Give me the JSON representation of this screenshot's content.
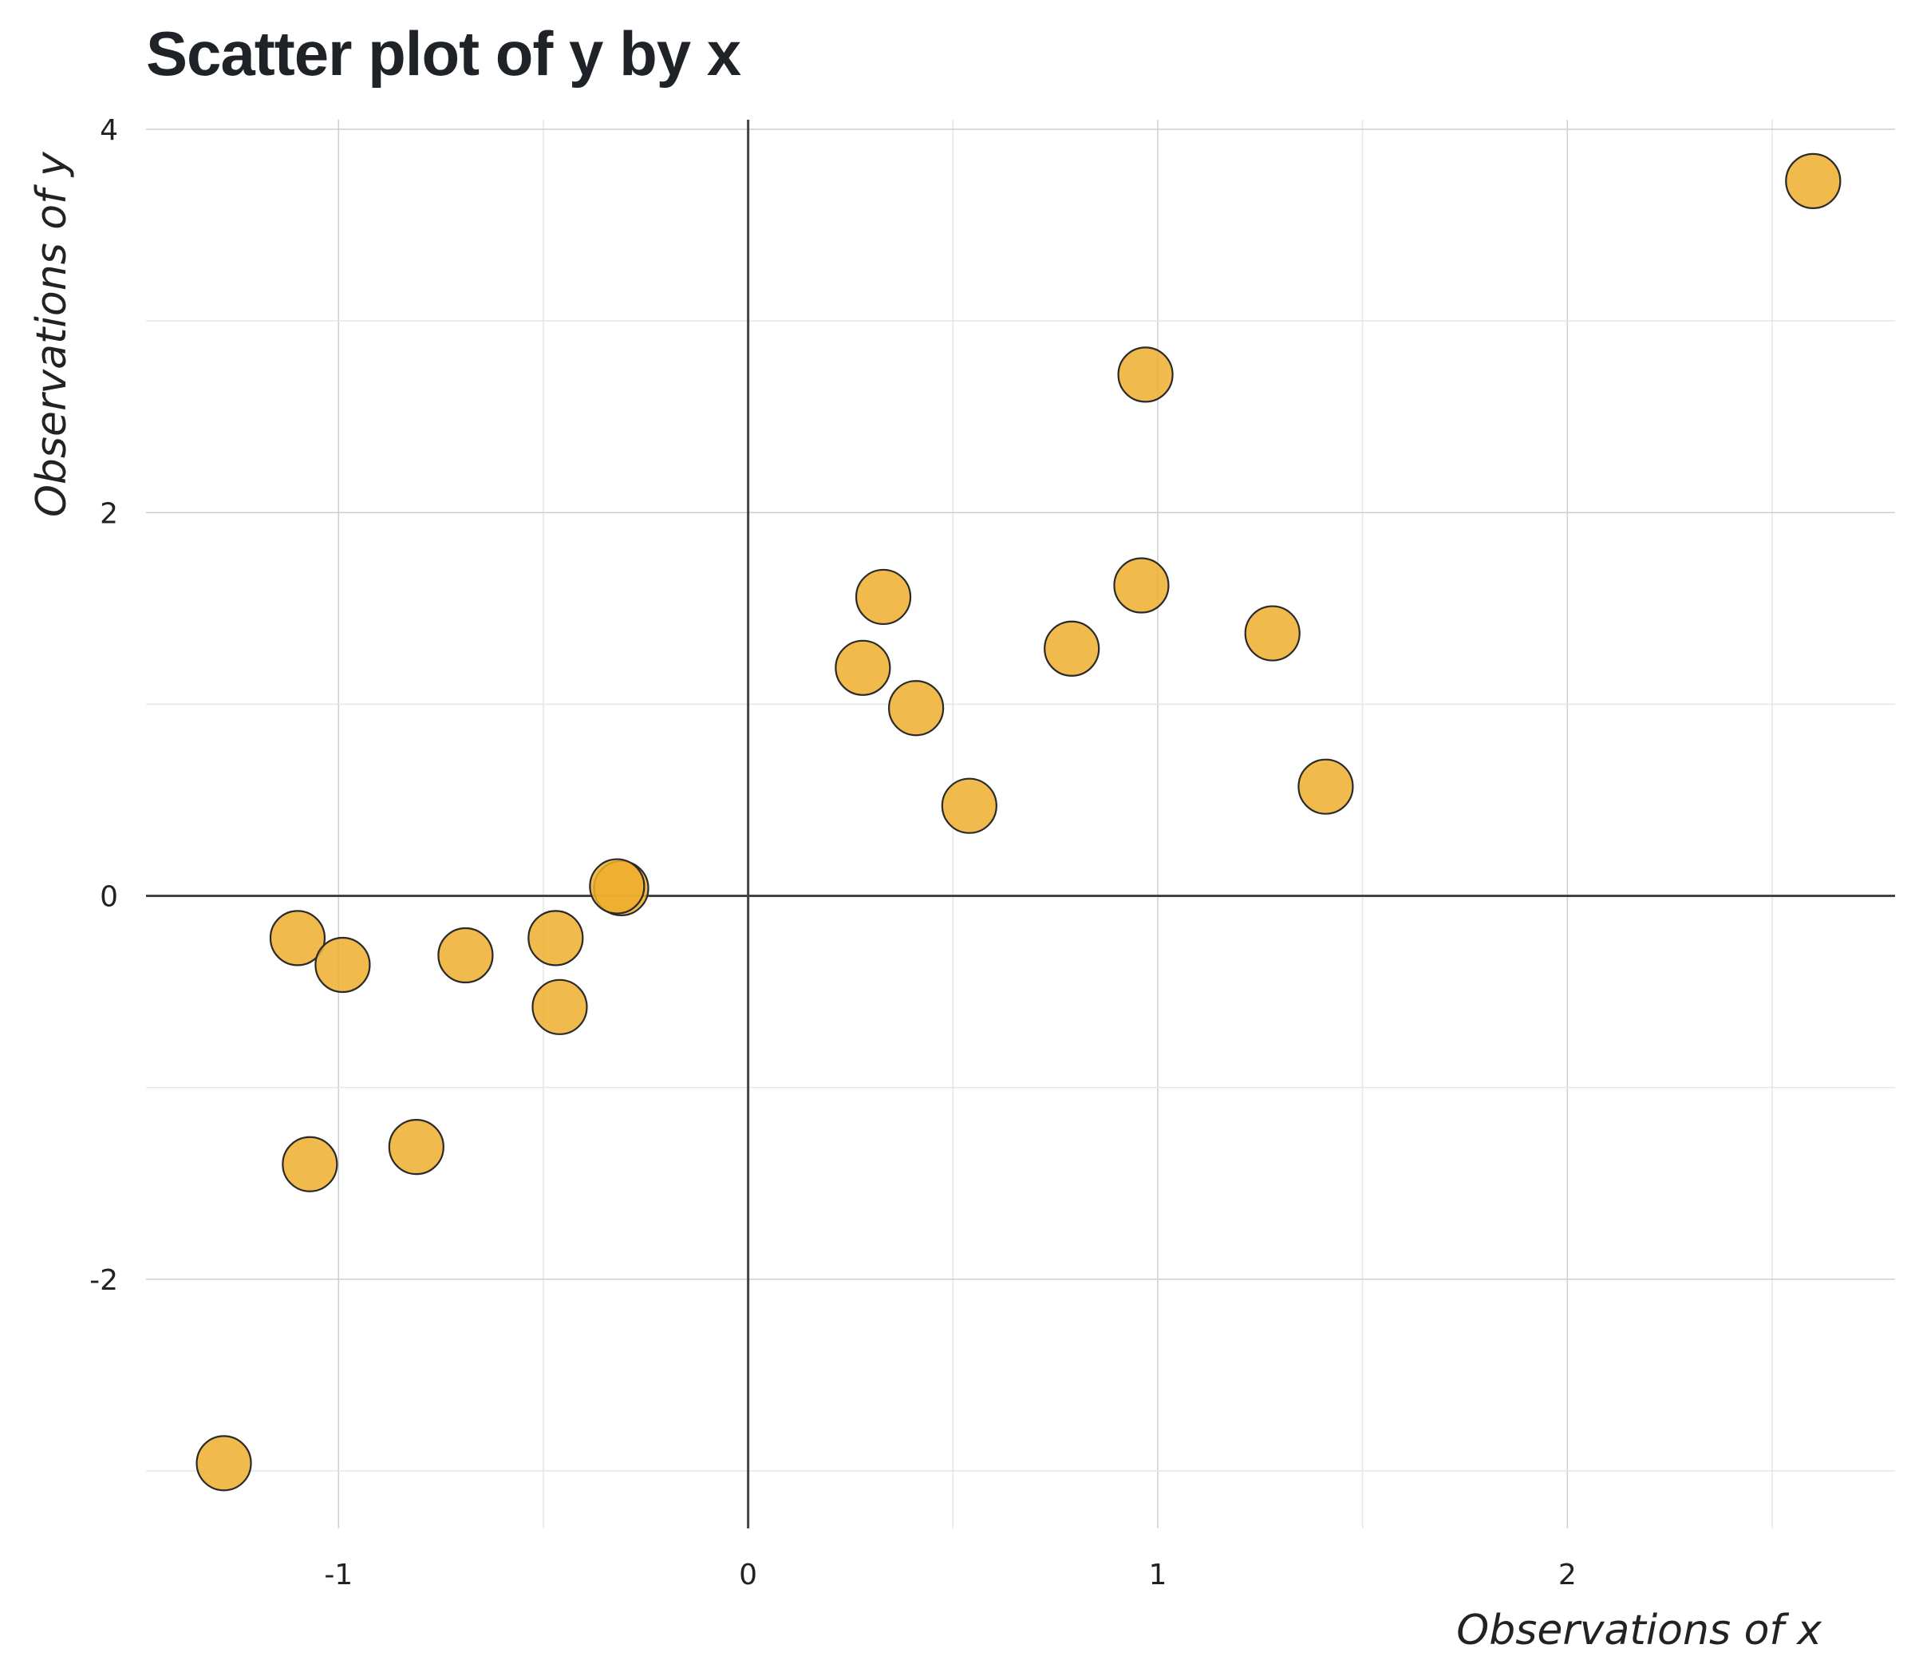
{
  "chart_data": {
    "type": "scatter",
    "title": "Scatter plot of y by x",
    "xlabel": "Observations of x",
    "ylabel": "Observations of y",
    "xlim": [
      -1.47,
      2.8
    ],
    "ylim": [
      -3.3,
      4.05
    ],
    "xticks": [
      -1,
      0,
      1,
      2
    ],
    "yticks": [
      -2,
      0,
      2,
      4
    ],
    "xtick_labels": [
      "-1",
      "0",
      "1",
      "2"
    ],
    "ytick_labels": [
      "-2",
      "0",
      "2",
      "4"
    ],
    "grid": true,
    "marker_color": "#eeae2e",
    "marker_edge_color": "#2a2a2a",
    "points": [
      {
        "x": 2.6,
        "y": 3.73
      },
      {
        "x": 0.97,
        "y": 2.72
      },
      {
        "x": 0.96,
        "y": 1.62
      },
      {
        "x": 0.33,
        "y": 1.56
      },
      {
        "x": 1.28,
        "y": 1.37
      },
      {
        "x": 0.79,
        "y": 1.29
      },
      {
        "x": 0.28,
        "y": 1.19
      },
      {
        "x": 0.41,
        "y": 0.98
      },
      {
        "x": 1.41,
        "y": 0.57
      },
      {
        "x": 0.54,
        "y": 0.47
      },
      {
        "x": -0.31,
        "y": 0.04
      },
      {
        "x": -0.32,
        "y": 0.05
      },
      {
        "x": -1.1,
        "y": -0.22
      },
      {
        "x": -0.47,
        "y": -0.22
      },
      {
        "x": -0.69,
        "y": -0.31
      },
      {
        "x": -0.99,
        "y": -0.36
      },
      {
        "x": -0.46,
        "y": -0.58
      },
      {
        "x": -0.81,
        "y": -1.31
      },
      {
        "x": -1.07,
        "y": -1.4
      },
      {
        "x": -1.28,
        "y": -2.96
      }
    ]
  }
}
